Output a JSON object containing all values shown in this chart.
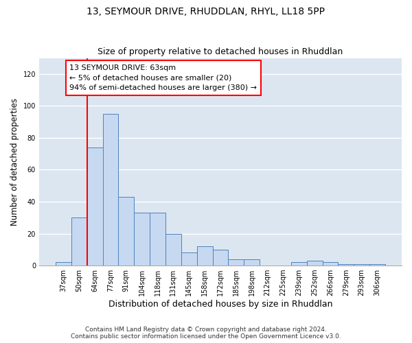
{
  "title": "13, SEYMOUR DRIVE, RHUDDLAN, RHYL, LL18 5PP",
  "subtitle": "Size of property relative to detached houses in Rhuddlan",
  "xlabel": "Distribution of detached houses by size in Rhuddlan",
  "ylabel": "Number of detached properties",
  "categories": [
    "37sqm",
    "50sqm",
    "64sqm",
    "77sqm",
    "91sqm",
    "104sqm",
    "118sqm",
    "131sqm",
    "145sqm",
    "158sqm",
    "172sqm",
    "185sqm",
    "198sqm",
    "212sqm",
    "225sqm",
    "239sqm",
    "252sqm",
    "266sqm",
    "279sqm",
    "293sqm",
    "306sqm"
  ],
  "values": [
    2,
    30,
    74,
    95,
    43,
    33,
    33,
    20,
    8,
    12,
    10,
    4,
    4,
    0,
    0,
    2,
    3,
    2,
    1,
    1,
    1
  ],
  "bar_color": "#c6d9f1",
  "bar_edge_color": "#4f81bd",
  "annotation_box_text": "13 SEYMOUR DRIVE: 63sqm\n← 5% of detached houses are smaller (20)\n94% of semi-detached houses are larger (380) →",
  "red_line_x": 1.5,
  "ylim": [
    0,
    130
  ],
  "yticks": [
    0,
    20,
    40,
    60,
    80,
    100,
    120
  ],
  "bg_color": "#dce6f1",
  "grid_color": "#ffffff",
  "footer": "Contains HM Land Registry data © Crown copyright and database right 2024.\nContains public sector information licensed under the Open Government Licence v3.0.",
  "title_fontsize": 10,
  "subtitle_fontsize": 9,
  "xlabel_fontsize": 9,
  "ylabel_fontsize": 8.5,
  "tick_fontsize": 7,
  "annotation_fontsize": 8,
  "footer_fontsize": 6.5
}
